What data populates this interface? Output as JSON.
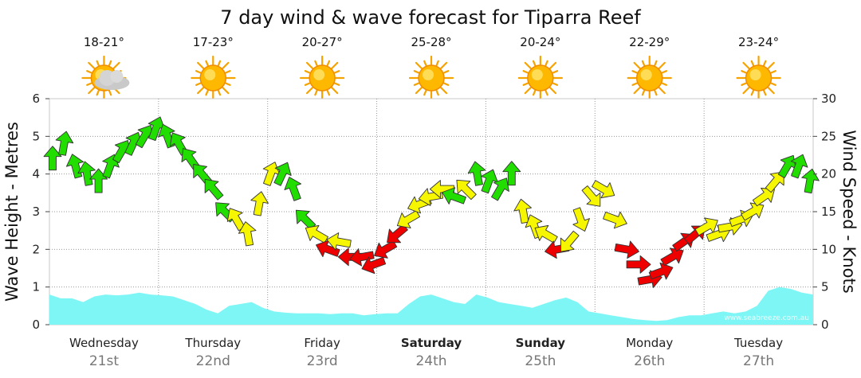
{
  "chart_data": {
    "type": "area+arrows",
    "title": "7 day wind & wave forecast for Tiparra Reef",
    "ylabel_left": "Wave Height - Metres",
    "ylabel_right": "Wind Speed - Knots",
    "ylim_left": [
      0,
      6
    ],
    "ylim_right": [
      0,
      30
    ],
    "left_ticks": [
      "0",
      "1",
      "2",
      "3",
      "4",
      "5",
      "6"
    ],
    "right_ticks": [
      "0",
      "5",
      "10",
      "15",
      "20",
      "25",
      "30"
    ],
    "watermark": "www.seabreeze.com.au",
    "colors": {
      "green": "#22dd00",
      "yellow": "#f6f600",
      "red": "#ee0000",
      "wave": "#7ff6f6",
      "grid": "#999999"
    },
    "days": [
      {
        "name": "Wednesday",
        "date": "21st",
        "temp": "18-21°",
        "icon": "sun-cloud-icon",
        "bold": false
      },
      {
        "name": "Thursday",
        "date": "22nd",
        "temp": "17-23°",
        "icon": "sun-icon",
        "bold": false
      },
      {
        "name": "Friday",
        "date": "23rd",
        "temp": "20-27°",
        "icon": "sun-icon",
        "bold": false
      },
      {
        "name": "Saturday",
        "date": "24th",
        "temp": "25-28°",
        "icon": "sun-icon",
        "bold": true
      },
      {
        "name": "Sunday",
        "date": "25th",
        "temp": "20-24°",
        "icon": "sun-icon",
        "bold": true
      },
      {
        "name": "Monday",
        "date": "26th",
        "temp": "22-29°",
        "icon": "sun-icon",
        "bold": false
      },
      {
        "name": "Tuesday",
        "date": "27th",
        "temp": "23-24°",
        "icon": "sun-icon",
        "bold": false
      }
    ],
    "wave_height_m": [
      0.8,
      0.7,
      0.7,
      0.6,
      0.75,
      0.8,
      0.78,
      0.8,
      0.85,
      0.8,
      0.78,
      0.75,
      0.65,
      0.55,
      0.4,
      0.3,
      0.5,
      0.55,
      0.6,
      0.45,
      0.35,
      0.32,
      0.3,
      0.3,
      0.3,
      0.28,
      0.3,
      0.3,
      0.25,
      0.28,
      0.3,
      0.3,
      0.55,
      0.75,
      0.8,
      0.7,
      0.6,
      0.55,
      0.8,
      0.72,
      0.6,
      0.55,
      0.5,
      0.45,
      0.55,
      0.65,
      0.72,
      0.6,
      0.35,
      0.3,
      0.25,
      0.2,
      0.15,
      0.12,
      0.1,
      0.12,
      0.2,
      0.25,
      0.25,
      0.3,
      0.35,
      0.3,
      0.35,
      0.5,
      0.9,
      1.0,
      0.95,
      0.85,
      0.8
    ],
    "wind_knots": [
      22,
      24,
      21,
      20,
      19,
      21,
      23,
      24,
      25,
      26,
      25,
      24,
      22,
      20,
      18,
      15,
      14,
      12,
      16,
      20,
      20,
      18,
      14,
      12,
      10,
      11,
      9,
      9,
      8,
      10,
      12,
      14,
      16,
      17,
      18,
      17,
      18,
      20,
      19,
      18,
      20,
      15,
      13,
      12,
      10,
      11,
      14,
      17,
      18,
      14,
      10,
      8,
      6,
      7,
      9,
      11,
      12,
      13,
      12,
      13,
      14,
      15,
      17,
      19,
      21,
      21,
      19
    ],
    "wind_colors": [
      "green",
      "green",
      "green",
      "green",
      "green",
      "green",
      "green",
      "green",
      "green",
      "green",
      "green",
      "green",
      "green",
      "green",
      "green",
      "green",
      "yellow",
      "yellow",
      "yellow",
      "yellow",
      "green",
      "green",
      "green",
      "yellow",
      "red",
      "yellow",
      "red",
      "red",
      "red",
      "red",
      "red",
      "yellow",
      "yellow",
      "yellow",
      "yellow",
      "green",
      "yellow",
      "green",
      "green",
      "green",
      "green",
      "yellow",
      "yellow",
      "yellow",
      "red",
      "yellow",
      "yellow",
      "yellow",
      "yellow",
      "yellow",
      "red",
      "red",
      "red",
      "red",
      "red",
      "red",
      "red",
      "yellow",
      "yellow",
      "yellow",
      "yellow",
      "yellow",
      "yellow",
      "yellow",
      "green",
      "green",
      "green"
    ],
    "wind_dir_deg": [
      0,
      10,
      -15,
      -10,
      0,
      20,
      30,
      25,
      30,
      20,
      -20,
      -30,
      -35,
      -40,
      -40,
      -45,
      -30,
      -10,
      10,
      20,
      25,
      -20,
      -45,
      -60,
      -70,
      -80,
      -90,
      -100,
      -110,
      -120,
      -130,
      -120,
      -110,
      -100,
      -90,
      -70,
      -45,
      -10,
      20,
      30,
      0,
      -10,
      -20,
      -60,
      -100,
      -140,
      160,
      140,
      120,
      110,
      100,
      90,
      80,
      70,
      60,
      55,
      50,
      60,
      70,
      80,
      70,
      60,
      55,
      40,
      30,
      20,
      10
    ]
  }
}
